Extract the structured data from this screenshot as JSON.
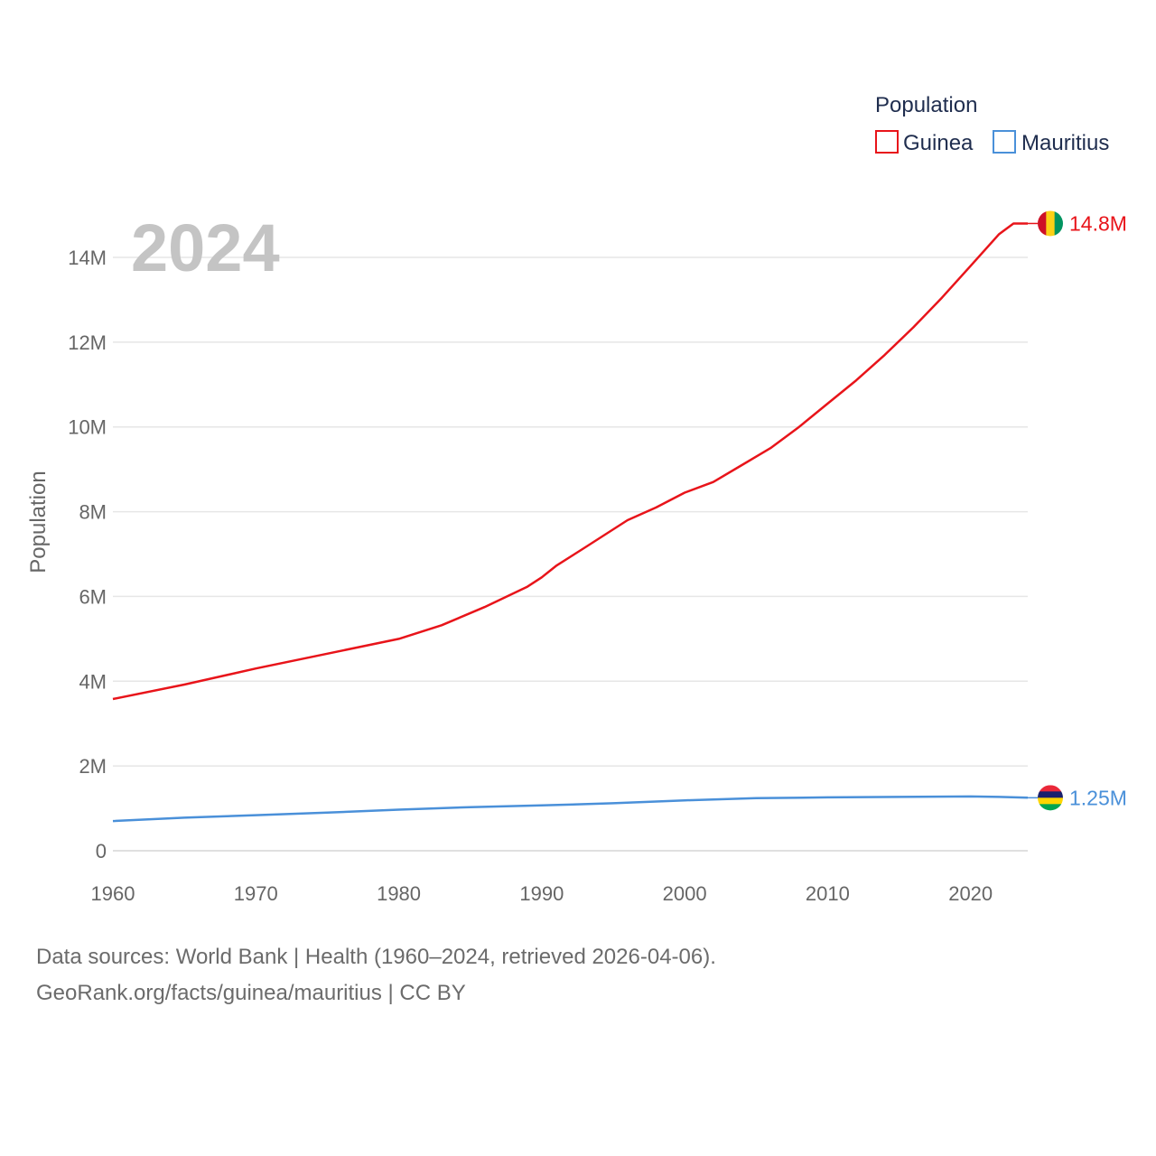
{
  "chart_data": {
    "type": "line",
    "title": "Population",
    "year_label": "2024",
    "ylabel": "Population",
    "xlabel": "",
    "xlim": [
      1960,
      2024
    ],
    "ylim": [
      0,
      15000000
    ],
    "x_ticks": [
      1960,
      1970,
      1980,
      1990,
      2000,
      2010,
      2020
    ],
    "y_ticks": [
      {
        "value": 0,
        "label": "0"
      },
      {
        "value": 2000000,
        "label": "2M"
      },
      {
        "value": 4000000,
        "label": "4M"
      },
      {
        "value": 6000000,
        "label": "6M"
      },
      {
        "value": 8000000,
        "label": "8M"
      },
      {
        "value": 10000000,
        "label": "10M"
      },
      {
        "value": 12000000,
        "label": "12M"
      },
      {
        "value": 14000000,
        "label": "14M"
      }
    ],
    "legend": {
      "title": "Population",
      "position": "top-right"
    },
    "series": [
      {
        "name": "Guinea",
        "color": "#e8141a",
        "end_label": "14.8M",
        "flag_colors": [
          "#ce1126",
          "#fcd116",
          "#009460"
        ],
        "points": [
          [
            1960,
            3580000
          ],
          [
            1965,
            3920000
          ],
          [
            1970,
            4300000
          ],
          [
            1975,
            4650000
          ],
          [
            1980,
            5000000
          ],
          [
            1983,
            5320000
          ],
          [
            1986,
            5750000
          ],
          [
            1989,
            6230000
          ],
          [
            1990,
            6450000
          ],
          [
            1991,
            6720000
          ],
          [
            1993,
            7150000
          ],
          [
            1996,
            7800000
          ],
          [
            1998,
            8100000
          ],
          [
            2000,
            8450000
          ],
          [
            2002,
            8700000
          ],
          [
            2004,
            9100000
          ],
          [
            2006,
            9500000
          ],
          [
            2008,
            10000000
          ],
          [
            2010,
            10550000
          ],
          [
            2012,
            11100000
          ],
          [
            2014,
            11700000
          ],
          [
            2016,
            12350000
          ],
          [
            2018,
            13050000
          ],
          [
            2020,
            13800000
          ],
          [
            2022,
            14550000
          ],
          [
            2023,
            14800000
          ],
          [
            2024,
            14800000
          ]
        ]
      },
      {
        "name": "Mauritius",
        "color": "#4a90d9",
        "end_label": "1.25M",
        "flag_colors": [
          "#ea2839",
          "#1a206d",
          "#ffd500",
          "#00a551"
        ],
        "points": [
          [
            1960,
            700000
          ],
          [
            1965,
            780000
          ],
          [
            1970,
            840000
          ],
          [
            1975,
            900000
          ],
          [
            1980,
            970000
          ],
          [
            1985,
            1030000
          ],
          [
            1990,
            1070000
          ],
          [
            1995,
            1120000
          ],
          [
            2000,
            1190000
          ],
          [
            2005,
            1240000
          ],
          [
            2010,
            1260000
          ],
          [
            2015,
            1270000
          ],
          [
            2020,
            1280000
          ],
          [
            2022,
            1270000
          ],
          [
            2024,
            1250000
          ]
        ]
      }
    ]
  },
  "footer": {
    "line1": "Data sources: World Bank | Health (1960–2024, retrieved 2026-04-06).",
    "line2": "GeoRank.org/facts/guinea/mauritius | CC BY"
  }
}
